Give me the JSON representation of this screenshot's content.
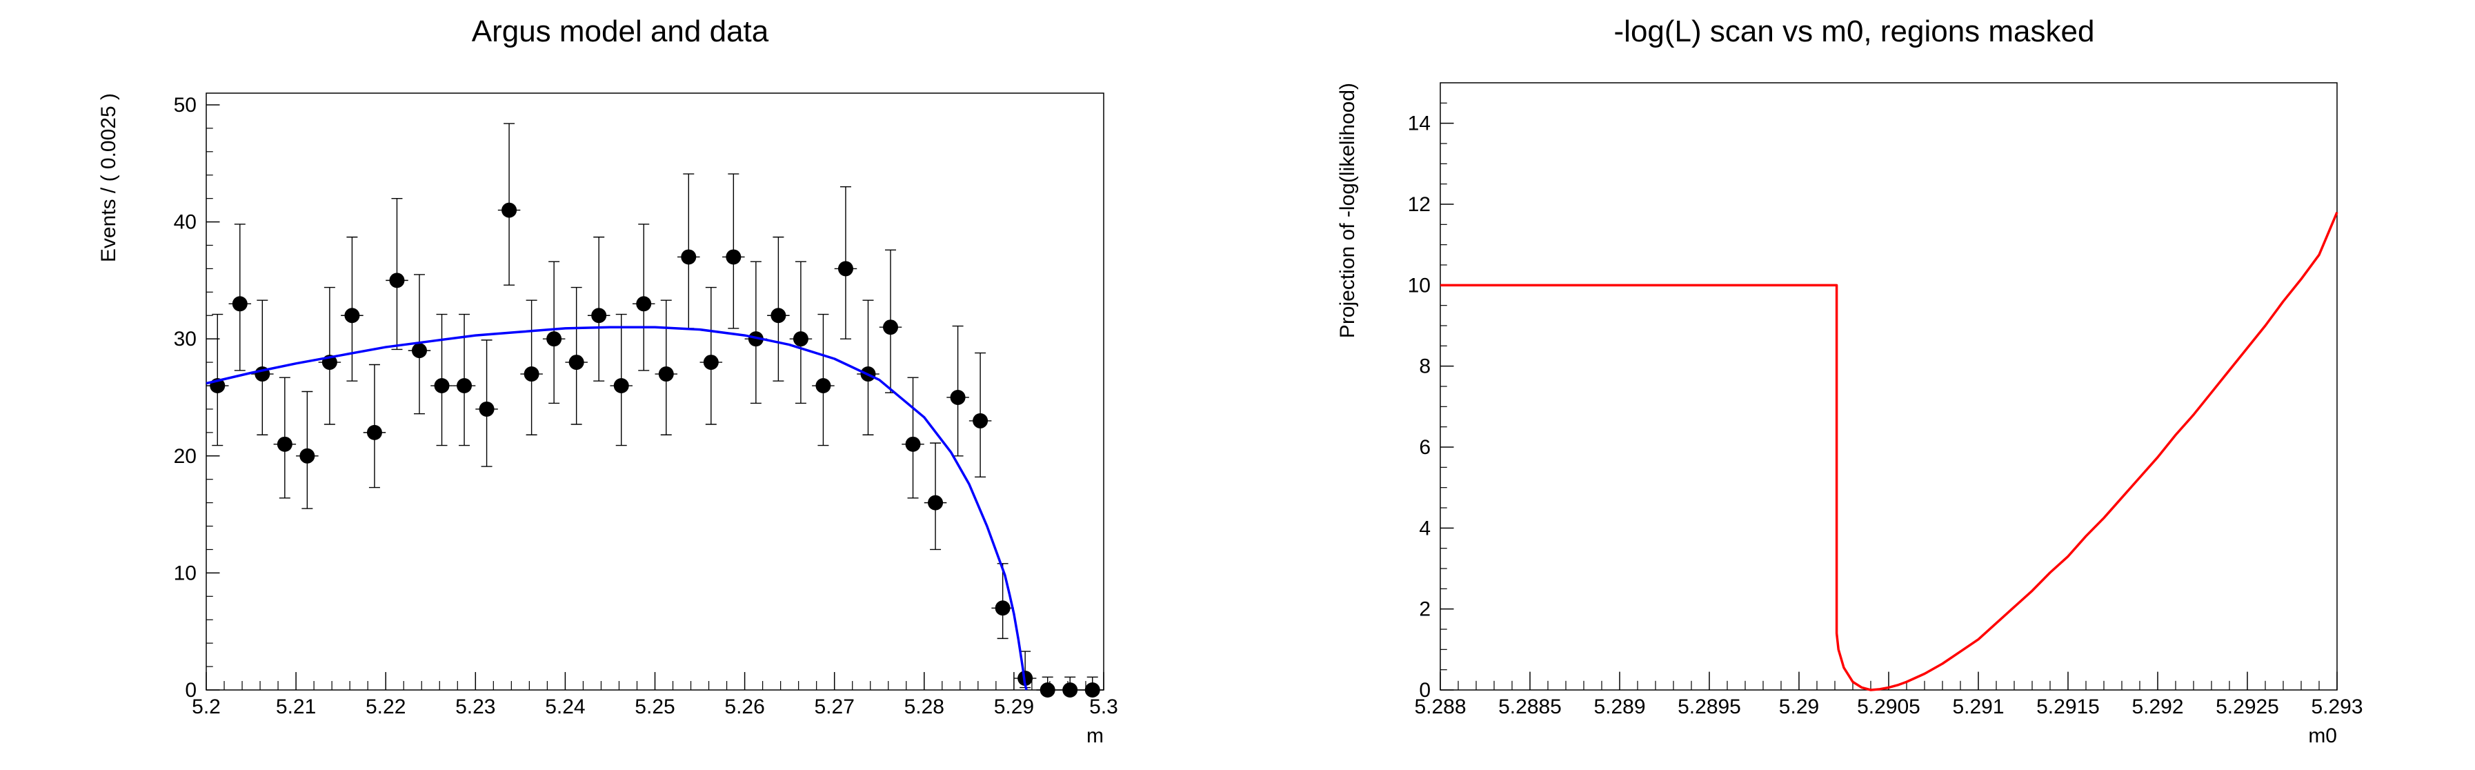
{
  "chart_data": [
    {
      "type": "scatter",
      "title": "Argus model and data",
      "xlabel": "m",
      "ylabel": "Events / ( 0.0025 )",
      "xlim": [
        5.2,
        5.3
      ],
      "ylim": [
        0,
        51
      ],
      "x_ticks": [
        "5.2",
        "5.21",
        "5.22",
        "5.23",
        "5.24",
        "5.25",
        "5.26",
        "5.27",
        "5.28",
        "5.29",
        "5.3"
      ],
      "y_ticks": [
        "0",
        "10",
        "20",
        "30",
        "40",
        "50"
      ],
      "grid": false,
      "legend": "none",
      "series": [
        {
          "kind": "points-with-errors",
          "color": "#000000",
          "x": [
            5.20125,
            5.20375,
            5.20625,
            5.20875,
            5.21125,
            5.21375,
            5.21625,
            5.21875,
            5.22125,
            5.22375,
            5.22625,
            5.22875,
            5.23125,
            5.23375,
            5.23625,
            5.23875,
            5.24125,
            5.24375,
            5.24625,
            5.24875,
            5.25125,
            5.25375,
            5.25625,
            5.25875,
            5.26125,
            5.26375,
            5.26625,
            5.26875,
            5.27125,
            5.27375,
            5.27625,
            5.27875,
            5.28125,
            5.28375,
            5.28625,
            5.28875,
            5.29125,
            5.29375,
            5.29625,
            5.29875
          ],
          "y": [
            26,
            33,
            27,
            21,
            20,
            28,
            32,
            22,
            35,
            29,
            26,
            26,
            24,
            41,
            27,
            30,
            28,
            32,
            26,
            33,
            27,
            37,
            28,
            37,
            30,
            32,
            30,
            26,
            36,
            27,
            31,
            21,
            16,
            25,
            23,
            7,
            1,
            0,
            0,
            0
          ],
          "xerr": 0.00125,
          "yerr_lo": [
            5.1,
            5.7,
            5.2,
            4.6,
            4.5,
            5.3,
            5.6,
            4.7,
            5.9,
            5.4,
            5.1,
            5.1,
            4.9,
            6.4,
            5.2,
            5.5,
            5.3,
            5.6,
            5.1,
            5.7,
            5.2,
            6.1,
            5.3,
            6.1,
            5.5,
            5.6,
            5.5,
            5.1,
            6.0,
            5.2,
            5.6,
            4.6,
            4.0,
            5.0,
            4.8,
            2.6,
            0.8,
            0,
            0,
            0
          ],
          "yerr_hi": [
            6.1,
            6.8,
            6.3,
            5.7,
            5.5,
            6.4,
            6.7,
            5.8,
            7.0,
            6.5,
            6.1,
            6.1,
            5.9,
            7.4,
            6.3,
            6.6,
            6.4,
            6.7,
            6.1,
            6.8,
            6.3,
            7.1,
            6.4,
            7.1,
            6.6,
            6.7,
            6.6,
            6.1,
            7.0,
            6.3,
            6.6,
            5.7,
            5.1,
            6.1,
            5.8,
            3.8,
            2.3,
            1.1,
            1.1,
            1.1
          ]
        },
        {
          "kind": "curve",
          "color": "#0000ff",
          "x": [
            5.2,
            5.205,
            5.21,
            5.215,
            5.22,
            5.225,
            5.23,
            5.235,
            5.24,
            5.245,
            5.25,
            5.255,
            5.26,
            5.265,
            5.27,
            5.275,
            5.28,
            5.283,
            5.285,
            5.287,
            5.289,
            5.2895,
            5.29,
            5.2905,
            5.291,
            5.2912,
            5.2914
          ],
          "y": [
            26.2,
            27.1,
            27.9,
            28.6,
            29.3,
            29.8,
            30.3,
            30.6,
            30.9,
            31.0,
            31.0,
            30.8,
            30.3,
            29.5,
            28.3,
            26.5,
            23.3,
            20.3,
            17.6,
            14.0,
            9.8,
            8.2,
            6.5,
            4.3,
            1.8,
            0.6,
            0
          ]
        }
      ]
    },
    {
      "type": "line",
      "title": "-log(L) scan vs m0, regions masked",
      "xlabel": "m0",
      "ylabel": "Projection of -log(likelihood)",
      "xlim": [
        5.288,
        5.293
      ],
      "ylim": [
        0,
        15
      ],
      "x_ticks": [
        "5.288",
        "5.2885",
        "5.289",
        "5.2895",
        "5.29",
        "5.2905",
        "5.291",
        "5.2915",
        "5.292",
        "5.2925",
        "5.293"
      ],
      "y_ticks": [
        "0",
        "2",
        "4",
        "6",
        "8",
        "10",
        "12",
        "14"
      ],
      "grid": false,
      "legend": "none",
      "series": [
        {
          "kind": "curve",
          "color": "#ff0000",
          "x": [
            5.288,
            5.29021,
            5.29021,
            5.29022,
            5.29025,
            5.2903,
            5.29035,
            5.2904,
            5.29045,
            5.2905,
            5.29055,
            5.2906,
            5.2907,
            5.2908,
            5.2909,
            5.291,
            5.2911,
            5.2912,
            5.2913,
            5.2914,
            5.2915,
            5.2916,
            5.2917,
            5.2918,
            5.2919,
            5.292,
            5.2921,
            5.2922,
            5.2923,
            5.2924,
            5.2925,
            5.2926,
            5.2927,
            5.2928,
            5.2929,
            5.293
          ],
          "y": [
            10.0,
            10.0,
            1.4,
            1.0,
            0.55,
            0.2,
            0.06,
            0.0,
            0.02,
            0.06,
            0.12,
            0.2,
            0.4,
            0.65,
            0.95,
            1.25,
            1.65,
            2.05,
            2.45,
            2.9,
            3.3,
            3.8,
            4.25,
            4.75,
            5.25,
            5.75,
            6.3,
            6.8,
            7.35,
            7.9,
            8.45,
            9.0,
            9.6,
            10.15,
            10.75,
            11.8
          ]
        }
      ]
    }
  ]
}
